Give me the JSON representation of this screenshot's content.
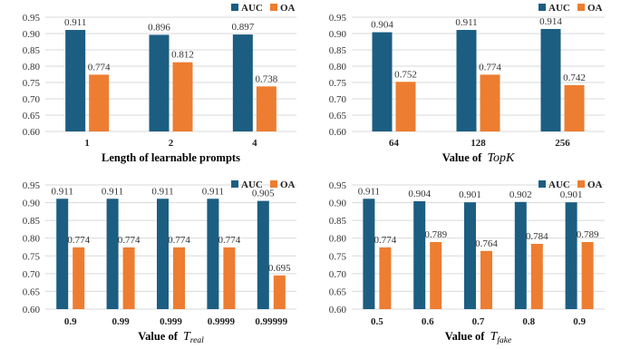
{
  "colors": {
    "auc": "#1B5E82",
    "oa": "#ED7D31",
    "grid": "#D9D9D9"
  },
  "chart_data": [
    {
      "type": "bar",
      "xlabel": {
        "prefix": "Length of learnable prompts",
        "symbol": "",
        "sub": ""
      },
      "categories": [
        "1",
        "2",
        "4"
      ],
      "ylim": [
        0.6,
        0.95
      ],
      "yticks": [
        "0.60",
        "0.65",
        "0.70",
        "0.75",
        "0.80",
        "0.85",
        "0.90",
        "0.95"
      ],
      "legend": "top-right",
      "series": [
        {
          "name": "AUC",
          "values": [
            0.911,
            0.896,
            0.897
          ],
          "labels": [
            "0.911",
            "0.896",
            "0.897"
          ]
        },
        {
          "name": "OA",
          "values": [
            0.774,
            0.812,
            0.738
          ],
          "labels": [
            "0.774",
            "0.812",
            "0.738"
          ]
        }
      ]
    },
    {
      "type": "bar",
      "xlabel": {
        "prefix": "Value of ",
        "symbol": "TopK",
        "sub": ""
      },
      "categories": [
        "64",
        "128",
        "256"
      ],
      "ylim": [
        0.6,
        0.95
      ],
      "yticks": [
        "0.60",
        "0.65",
        "0.70",
        "0.75",
        "0.80",
        "0.85",
        "0.90",
        "0.95"
      ],
      "legend": "top-right",
      "series": [
        {
          "name": "AUC",
          "values": [
            0.904,
            0.911,
            0.914
          ],
          "labels": [
            "0.904",
            "0.911",
            "0.914"
          ]
        },
        {
          "name": "OA",
          "values": [
            0.752,
            0.774,
            0.742
          ],
          "labels": [
            "0.752",
            "0.774",
            "0.742"
          ]
        }
      ]
    },
    {
      "type": "bar",
      "xlabel": {
        "prefix": "Value of ",
        "symbol": "T",
        "sub": "real"
      },
      "categories": [
        "0.9",
        "0.99",
        "0.999",
        "0.9999",
        "0.99999"
      ],
      "ylim": [
        0.6,
        0.95
      ],
      "yticks": [
        "0.60",
        "0.65",
        "0.70",
        "0.75",
        "0.80",
        "0.85",
        "0.90",
        "0.95"
      ],
      "legend": "top-right",
      "series": [
        {
          "name": "AUC",
          "values": [
            0.911,
            0.911,
            0.911,
            0.911,
            0.905
          ],
          "labels": [
            "0.911",
            "0.911",
            "0.911",
            "0.911",
            "0.905"
          ]
        },
        {
          "name": "OA",
          "values": [
            0.774,
            0.774,
            0.774,
            0.774,
            0.695
          ],
          "labels": [
            "0.774",
            "0.774",
            "0.774",
            "0.774",
            "0.695"
          ]
        }
      ]
    },
    {
      "type": "bar",
      "xlabel": {
        "prefix": "Value of ",
        "symbol": "T",
        "sub": "fake"
      },
      "categories": [
        "0.5",
        "0.6",
        "0.7",
        "0.8",
        "0.9"
      ],
      "ylim": [
        0.6,
        0.95
      ],
      "yticks": [
        "0.60",
        "0.65",
        "0.70",
        "0.75",
        "0.80",
        "0.85",
        "0.90",
        "0.95"
      ],
      "legend": "top-right",
      "series": [
        {
          "name": "AUC",
          "values": [
            0.911,
            0.904,
            0.901,
            0.902,
            0.901
          ],
          "labels": [
            "0.911",
            "0.904",
            "0.901",
            "0.902",
            "0.901"
          ]
        },
        {
          "name": "OA",
          "values": [
            0.774,
            0.789,
            0.764,
            0.784,
            0.789
          ],
          "labels": [
            "0.774",
            "0.789",
            "0.764",
            "0.784",
            "0.789"
          ]
        }
      ]
    }
  ]
}
